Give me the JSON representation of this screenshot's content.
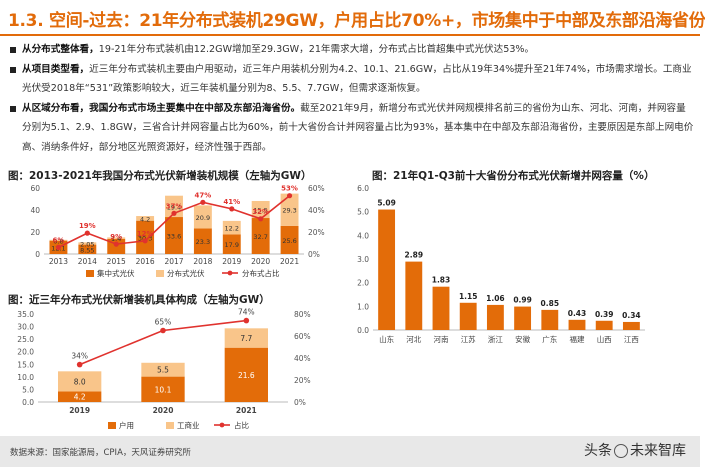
{
  "title": "1.3. 空间-过去：21年分布式装机29GW，户用占比70%+，市场集中于中部及东部沿海省份",
  "bullets": [
    {
      "head": "从分布式整体看，",
      "text": "19-21年分布式装机由12.2GW增加至29.3GW，21年需求大增，分布式占比首超集中式光伏达53%。"
    },
    {
      "head": "从项目类型看，",
      "text": "近三年分布式装机主要由户用驱动，近三年户用装机分别为4.2、10.1、21.6GW，占比从19年34%提升至21年74%，市场需求增长。工商业光伏受2018年“531”政策影响较大，近三年装机量分别为8、5.5、7.7GW，但需求逐渐恢复。"
    },
    {
      "head": "从区域分布看，我国分布式市场主要集中在中部及东部沿海省份。",
      "text": "截至2021年9月，新增分布式光伏并网规模排名前三的省份为山东、河北、河南，并网容量分别为5.1、2.9、1.8GW，三省合计并网容量占比为60%，前十大省份合计并网容量占比为93%，基本集中在中部及东部沿海省份，主要原因是东部上网电价高、消纳条件好，部分地区光照资源好，经济性强于西部。"
    }
  ],
  "chart_titles": {
    "c1": "图：2013-2021年我国分布式光伏新增装机规模（左轴为GW）",
    "c2": "图：近三年分布式光伏新增装机具体构成（左轴为GW）",
    "c3": "图：21年Q1-Q3前十大省份分布式光伏新增并网容量（%）"
  },
  "chart_data": [
    {
      "type": "bar",
      "title": "图：2013-2021年我国分布式光伏新增装机规模（左轴为GW）",
      "categories": [
        "2013",
        "2014",
        "2015",
        "2016",
        "2017",
        "2018",
        "2019",
        "2020",
        "2021"
      ],
      "series": [
        {
          "name": "集中式光伏",
          "values": [
            12.1,
            8.55,
            13.7,
            30.3,
            33.6,
            23.3,
            17.9,
            32.7,
            25.6
          ]
        },
        {
          "name": "分布式光伏",
          "values": [
            0.8,
            2.05,
            1.4,
            4.2,
            19.4,
            20.9,
            12.2,
            15.5,
            29.3
          ]
        },
        {
          "name": "分布式占比",
          "values": [
            6,
            19,
            9,
            12,
            37,
            47,
            41,
            32,
            53
          ],
          "axis": "right",
          "unit": "%"
        }
      ],
      "value_labels": {
        "集中式光伏": [
          "12.1",
          "8.55",
          "",
          "30.3",
          "33.6",
          "23.3",
          "17.9",
          "32.7",
          "25.6"
        ],
        "分布式光伏": [
          "0.8",
          "2.05",
          "1.4",
          "4.2",
          "19.4",
          "20.9",
          "12.2",
          "15.5",
          "29.3"
        ]
      },
      "ylim": [
        0,
        60
      ],
      "yticks": [
        0,
        20,
        40,
        60
      ],
      "y2lim": [
        0,
        60
      ],
      "y2ticks": [
        "0%",
        "20%",
        "40%",
        "60%"
      ],
      "legend": [
        "集中式光伏",
        "分布式光伏",
        "分布式占比"
      ]
    },
    {
      "type": "bar",
      "title": "图：近三年分布式光伏新增装机具体构成（左轴为GW）",
      "categories": [
        "2019",
        "2020",
        "2021"
      ],
      "series": [
        {
          "name": "户用",
          "values": [
            4.2,
            10.1,
            21.6
          ]
        },
        {
          "name": "工商业",
          "values": [
            8.0,
            5.5,
            7.7
          ]
        },
        {
          "name": "占比",
          "values": [
            34,
            65,
            74
          ],
          "axis": "right",
          "unit": "%"
        }
      ],
      "ylim": [
        0,
        35
      ],
      "yticks": [
        "0.0",
        "5.0",
        "10.0",
        "15.0",
        "20.0",
        "25.0",
        "30.0",
        "35.0"
      ],
      "y2lim": [
        0,
        80
      ],
      "y2ticks": [
        "0%",
        "20%",
        "40%",
        "60%",
        "80%"
      ],
      "legend": [
        "户用",
        "工商业",
        "占比"
      ]
    },
    {
      "type": "bar",
      "title": "图：21年Q1-Q3前十大省份分布式光伏新增并网容量（%）",
      "categories": [
        "山东",
        "河北",
        "河南",
        "江苏",
        "浙江",
        "安徽",
        "广东",
        "福建",
        "山西",
        "江西"
      ],
      "values": [
        5.09,
        2.89,
        1.83,
        1.15,
        1.06,
        0.99,
        0.85,
        0.43,
        0.39,
        0.34
      ],
      "labels": [
        "5.09",
        "2.89",
        "1.83",
        "1.15",
        "1.06",
        "0.99",
        "0.85",
        "0.43",
        "0.39",
        "0.34"
      ],
      "ylim": [
        0,
        6
      ],
      "yticks": [
        "0.0",
        "1.0",
        "2.0",
        "3.0",
        "4.0",
        "5.0",
        "6.0"
      ]
    }
  ],
  "source": "数据来源：国家能源局，CPIA，天风证券研究所",
  "watermark": {
    "left": "头条",
    "right": "未来智库"
  },
  "colors": {
    "accent": "#e26b0a",
    "dark_orange": "#e36c09",
    "light_orange": "#f9c58a",
    "red_line": "#e0322e"
  }
}
